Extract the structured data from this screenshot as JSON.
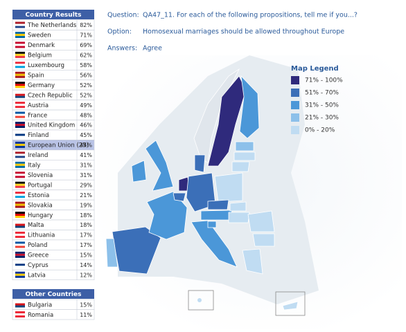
{
  "country_results": {
    "title": "Country Results",
    "rows": [
      {
        "name": "The Netherlands",
        "value": "82%"
      },
      {
        "name": "Sweden",
        "value": "71%"
      },
      {
        "name": "Denmark",
        "value": "69%"
      },
      {
        "name": "Belgium",
        "value": "62%"
      },
      {
        "name": "Luxembourg",
        "value": "58%"
      },
      {
        "name": "Spain",
        "value": "56%"
      },
      {
        "name": "Germany",
        "value": "52%"
      },
      {
        "name": "Czech Republic",
        "value": "52%"
      },
      {
        "name": "Austria",
        "value": "49%"
      },
      {
        "name": "France",
        "value": "48%"
      },
      {
        "name": "United Kingdom",
        "value": "46%"
      },
      {
        "name": "Finland",
        "value": "45%"
      },
      {
        "name": "European Union (25)",
        "value": "44%"
      },
      {
        "name": "Ireland",
        "value": "41%"
      },
      {
        "name": "Italy",
        "value": "31%"
      },
      {
        "name": "Slovenia",
        "value": "31%"
      },
      {
        "name": "Portugal",
        "value": "29%"
      },
      {
        "name": "Estonia",
        "value": "21%"
      },
      {
        "name": "Slovakia",
        "value": "19%"
      },
      {
        "name": "Hungary",
        "value": "18%"
      },
      {
        "name": "Malta",
        "value": "18%"
      },
      {
        "name": "Lithuania",
        "value": "17%"
      },
      {
        "name": "Poland",
        "value": "17%"
      },
      {
        "name": "Greece",
        "value": "15%"
      },
      {
        "name": "Cyprus",
        "value": "14%"
      },
      {
        "name": "Latvia",
        "value": "12%"
      }
    ]
  },
  "other_countries": {
    "title": "Other Countries",
    "rows": [
      {
        "name": "Bulgaria",
        "value": "15%"
      },
      {
        "name": "Romania",
        "value": "11%"
      }
    ]
  },
  "question": {
    "label": "Question:",
    "text": "QA47_11. For each of the following propositions, tell me if you...?"
  },
  "option": {
    "label": "Option:",
    "text": "Homosexual marriages should be allowed throughout Europe"
  },
  "answers": {
    "label": "Answers:",
    "text": "Agree"
  },
  "legend": {
    "title": "Map Legend",
    "items": [
      {
        "label": "71% - 100%",
        "color": "#2f2a7c"
      },
      {
        "label": "51% - 70%",
        "color": "#3b6fb8"
      },
      {
        "label": "31% - 50%",
        "color": "#4b97d8"
      },
      {
        "label": "21% - 30%",
        "color": "#8cc0ea"
      },
      {
        "label": "0% - 20%",
        "color": "#c0dcf2"
      }
    ]
  }
}
